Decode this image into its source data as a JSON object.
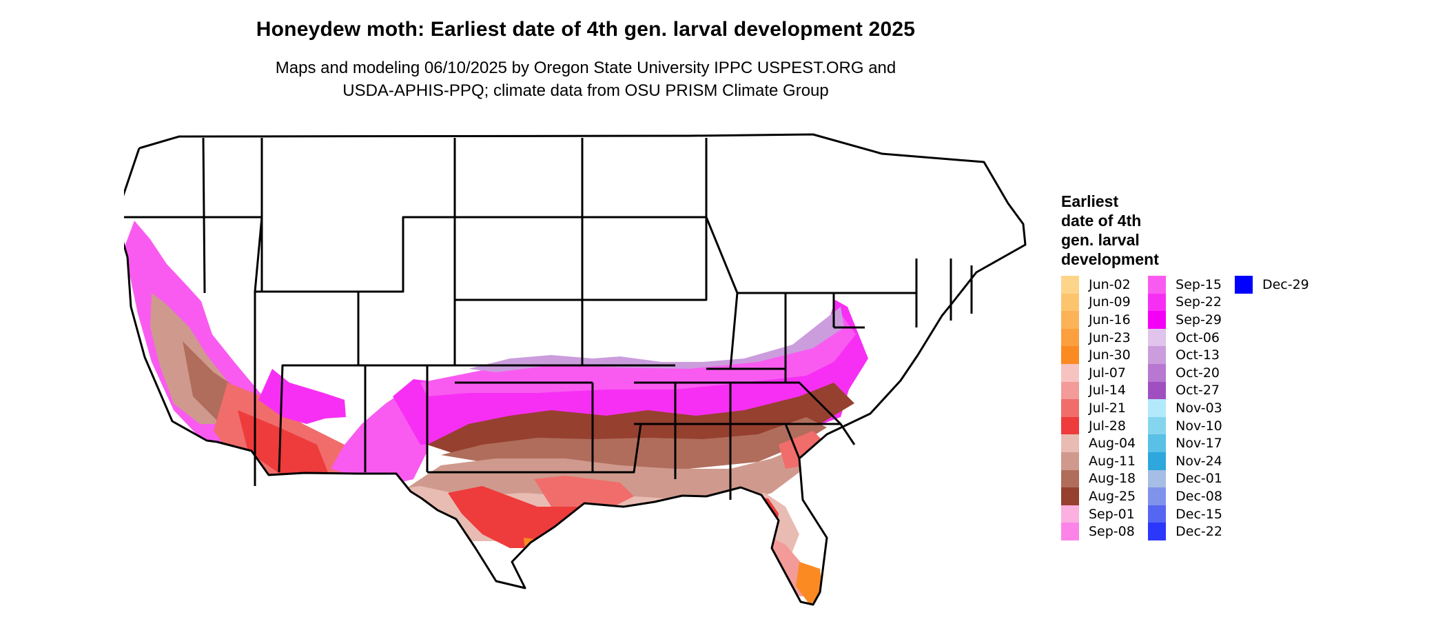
{
  "title": "Honeydew moth: Earliest date of 4th gen. larval development 2025",
  "subtitle_line1": "Maps and modeling 06/10/2025 by Oregon State University IPPC USPEST.ORG and",
  "subtitle_line2": "USDA-APHIS-PPQ; climate data from OSU PRISM Climate Group",
  "legend": {
    "title_lines": [
      "Earliest",
      "date of 4th",
      "gen. larval",
      "development"
    ],
    "columns": [
      [
        {
          "label": "Jun-02",
          "color": "#fdd58a"
        },
        {
          "label": "Jun-09",
          "color": "#fdc46e"
        },
        {
          "label": "Jun-16",
          "color": "#fcb257"
        },
        {
          "label": "Jun-23",
          "color": "#fc9f3f"
        },
        {
          "label": "Jun-30",
          "color": "#fb8a23"
        },
        {
          "label": "Jul-07",
          "color": "#f6c3c1"
        },
        {
          "label": "Jul-14",
          "color": "#f39b99"
        },
        {
          "label": "Jul-21",
          "color": "#f06d6b"
        },
        {
          "label": "Jul-28",
          "color": "#ee3b3b"
        },
        {
          "label": "Aug-04",
          "color": "#e8bcb3"
        },
        {
          "label": "Aug-11",
          "color": "#cf9a8d"
        },
        {
          "label": "Aug-18",
          "color": "#b06d5c"
        },
        {
          "label": "Aug-25",
          "color": "#96402f"
        },
        {
          "label": "Sep-01",
          "color": "#fbb0e0"
        },
        {
          "label": "Sep-08",
          "color": "#fc84e8"
        }
      ],
      [
        {
          "label": "Sep-15",
          "color": "#f95bf0"
        },
        {
          "label": "Sep-22",
          "color": "#f72ff4"
        },
        {
          "label": "Sep-29",
          "color": "#f500f6"
        },
        {
          "label": "Oct-06",
          "color": "#e0c4ec"
        },
        {
          "label": "Oct-13",
          "color": "#cb9ddd"
        },
        {
          "label": "Oct-20",
          "color": "#b877d0"
        },
        {
          "label": "Oct-27",
          "color": "#a04fc0"
        },
        {
          "label": "Nov-03",
          "color": "#b2eafb"
        },
        {
          "label": "Nov-10",
          "color": "#86d5ef"
        },
        {
          "label": "Nov-17",
          "color": "#5ac0e6"
        },
        {
          "label": "Nov-24",
          "color": "#2da7dc"
        },
        {
          "label": "Dec-01",
          "color": "#a6bde6"
        },
        {
          "label": "Dec-08",
          "color": "#7f93eb"
        },
        {
          "label": "Dec-15",
          "color": "#5566f3"
        },
        {
          "label": "Dec-22",
          "color": "#2b37fb"
        }
      ],
      [
        {
          "label": "Dec-29",
          "color": "#0000fe"
        }
      ]
    ]
  }
}
